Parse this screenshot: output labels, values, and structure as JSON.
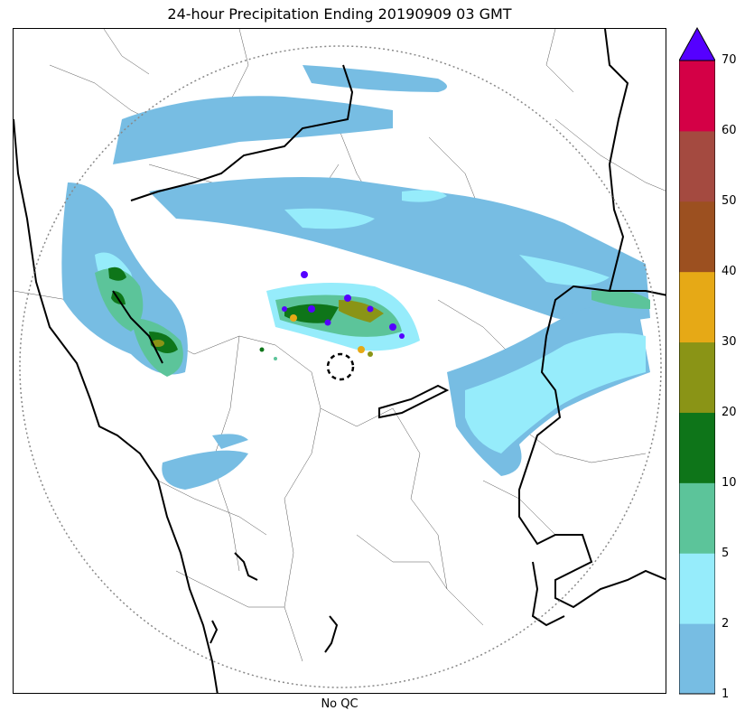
{
  "title": "24-hour Precipitation Ending 20190909 03 GMT",
  "xlabel": "No QC",
  "colorbar": {
    "ticks": [
      "1",
      "2",
      "5",
      "10",
      "20",
      "30",
      "40",
      "50",
      "60",
      "70"
    ],
    "bin_colors": [
      "#77bde3",
      "#96ecfb",
      "#5cc49a",
      "#0e7519",
      "#8a9416",
      "#e6a916",
      "#9c5020",
      "#a44a40",
      "#d40046"
    ],
    "extend_max_color": "#5500ff"
  },
  "legend_semantics": "precipitation-bins",
  "palette": {
    "low": "#77bde3",
    "mid": "#96ecfb",
    "moderate": "#5cc49a",
    "heavy": "#0e7519",
    "very_heavy": "#8a9416",
    "intense": "#e6a916",
    "extreme": "#5500ff",
    "range_ring": "#888888",
    "borders": "#000000"
  }
}
